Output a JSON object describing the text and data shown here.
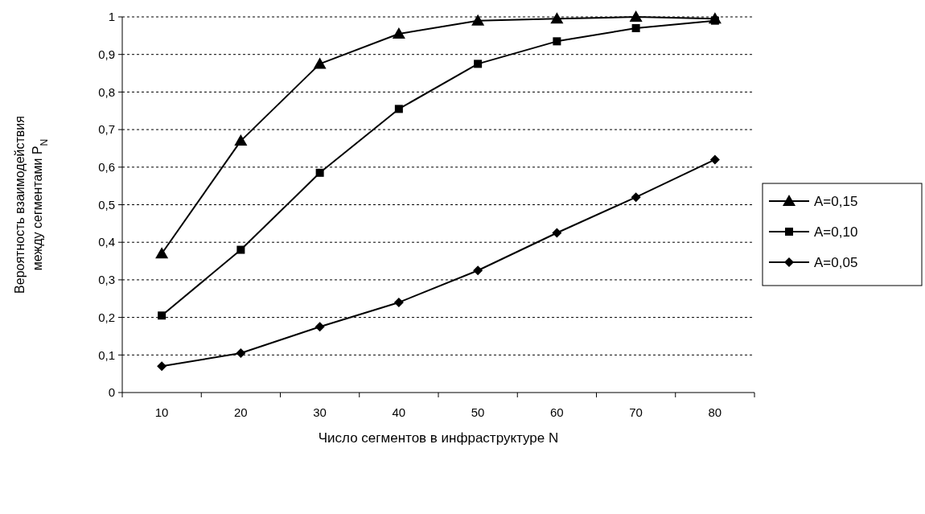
{
  "chart_data": {
    "type": "line",
    "xlabel": "Число сегментов в инфраструктуре N",
    "ylabel": "Вероятность взаимодействия между сегментами P$_{N}$",
    "categories": [
      "10",
      "20",
      "30",
      "40",
      "50",
      "60",
      "70",
      "80"
    ],
    "ylim": [
      0,
      1
    ],
    "yticks": [
      0,
      {
        "value": 0.1,
        "label": "0,1"
      },
      {
        "value": 0.2,
        "label": "0,2"
      },
      {
        "value": 0.3,
        "label": "0,3"
      },
      {
        "value": 0.4,
        "label": "0,4"
      },
      {
        "value": 0.5,
        "label": "0,5"
      },
      {
        "value": 0.6,
        "label": "0,6"
      },
      {
        "value": 0.7,
        "label": "0,7"
      },
      {
        "value": 0.8,
        "label": "0,8"
      },
      {
        "value": 0.9,
        "label": "0,9"
      },
      1
    ],
    "grid": "y",
    "legend": "right",
    "line_style": "solid",
    "series": [
      {
        "name": "A=0,15",
        "color": "#000000",
        "marker": "triangle",
        "values": [
          0.37,
          0.67,
          0.875,
          0.955,
          0.99,
          0.995,
          1.0,
          0.995
        ]
      },
      {
        "name": "A=0,10",
        "color": "#000000",
        "marker": "square",
        "values": [
          0.205,
          0.38,
          0.585,
          0.755,
          0.875,
          0.935,
          0.97,
          0.99
        ]
      },
      {
        "name": "A=0,05",
        "color": "#000000",
        "marker": "diamond",
        "values": [
          0.07,
          0.105,
          0.175,
          0.24,
          0.325,
          0.425,
          0.52,
          0.62
        ]
      }
    ]
  }
}
